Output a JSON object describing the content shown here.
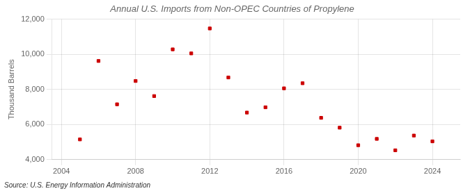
{
  "chart_data": {
    "type": "scatter",
    "title": "Annual U.S. Imports from Non-OPEC Countries of Propylene",
    "ylabel": "Thousand Barrels",
    "annotations": [
      "Source: U.S. Energy Information Administration"
    ],
    "x": [
      2005,
      2006,
      2007,
      2008,
      2009,
      2010,
      2011,
      2012,
      2013,
      2014,
      2015,
      2016,
      2017,
      2018,
      2019,
      2020,
      2021,
      2022,
      2023,
      2024
    ],
    "values": [
      5150,
      9620,
      7150,
      8480,
      7620,
      10280,
      10050,
      11470,
      8680,
      6680,
      6980,
      8060,
      8350,
      6380,
      5820,
      4820,
      5180,
      4530,
      5370,
      5040
    ],
    "color": "#cc0000",
    "marker": "square",
    "xlim": [
      2003.5,
      2025.5
    ],
    "xticks": [
      2004,
      2008,
      2012,
      2016,
      2020,
      2024
    ],
    "ylim": [
      4000,
      12000
    ],
    "yticks": [
      {
        "value": 4000,
        "label": "4,000"
      },
      {
        "value": 6000,
        "label": "6,000"
      },
      {
        "value": 8000,
        "label": "8,000"
      },
      {
        "value": 10000,
        "label": "10,000"
      },
      {
        "value": 12000,
        "label": "12,000"
      }
    ],
    "grid": true
  }
}
